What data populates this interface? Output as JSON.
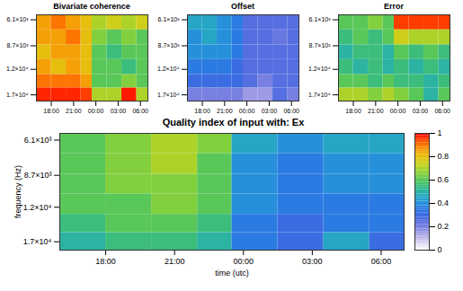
{
  "chart_data": [
    {
      "type": "heatmap",
      "title": "Bivariate coherence",
      "log": "y",
      "x_edges": [
        16,
        18,
        20,
        22,
        23.5,
        25.5,
        27.5,
        29.5,
        31
      ],
      "y_edges": [
        5700,
        7000,
        8600,
        10500,
        12900,
        15500,
        18500
      ],
      "cells": [
        [
          0.85,
          0.9,
          0.85,
          0.8,
          0.7,
          0.75,
          0.7,
          0.75
        ],
        [
          0.85,
          0.85,
          0.9,
          0.8,
          0.65,
          0.6,
          0.65,
          0.6
        ],
        [
          0.8,
          0.85,
          0.85,
          0.8,
          0.6,
          0.55,
          0.6,
          0.6
        ],
        [
          0.85,
          0.8,
          0.85,
          0.8,
          0.6,
          0.6,
          0.55,
          0.6
        ],
        [
          0.9,
          0.9,
          0.9,
          0.85,
          0.6,
          0.6,
          0.65,
          0.6
        ],
        [
          0.97,
          0.97,
          0.97,
          0.95,
          0.7,
          0.7,
          0.98,
          0.7
        ]
      ],
      "xlim": [
        16,
        31
      ],
      "ylim": [
        18500,
        5700
      ],
      "xticks": [
        {
          "value": 18,
          "label": "18:00"
        },
        {
          "value": 21,
          "label": "21:00"
        },
        {
          "value": 24,
          "label": "00:00"
        },
        {
          "value": 27,
          "label": "03:00"
        },
        {
          "value": 30,
          "label": "06:00"
        }
      ],
      "yticks": [
        {
          "value": 6100,
          "label": "6.1×10³"
        },
        {
          "value": 8700,
          "label": "8.7×10³"
        },
        {
          "value": 12000,
          "label": "1.2×10⁴"
        },
        {
          "value": 17000,
          "label": "1.7×10⁴"
        }
      ]
    },
    {
      "type": "heatmap",
      "title": "Offset",
      "log": "y",
      "x_edges": [
        16,
        18,
        20,
        22,
        23.5,
        25.5,
        27.5,
        29.5,
        31
      ],
      "y_edges": [
        5700,
        7000,
        8600,
        10500,
        12900,
        15500,
        18500
      ],
      "cells": [
        [
          0.45,
          0.45,
          0.4,
          0.35,
          0.25,
          0.25,
          0.25,
          0.25
        ],
        [
          0.4,
          0.45,
          0.4,
          0.35,
          0.25,
          0.25,
          0.22,
          0.25
        ],
        [
          0.4,
          0.4,
          0.4,
          0.35,
          0.25,
          0.25,
          0.25,
          0.25
        ],
        [
          0.35,
          0.35,
          0.35,
          0.3,
          0.25,
          0.25,
          0.25,
          0.25
        ],
        [
          0.3,
          0.3,
          0.3,
          0.3,
          0.25,
          0.2,
          0.25,
          0.25
        ],
        [
          0.2,
          0.2,
          0.2,
          0.2,
          0.15,
          0.15,
          0.25,
          0.2
        ]
      ],
      "xlim": [
        16,
        31
      ],
      "ylim": [
        18500,
        5700
      ],
      "xticks": [
        {
          "value": 18,
          "label": "18:00"
        },
        {
          "value": 21,
          "label": "21:00"
        },
        {
          "value": 24,
          "label": "00:00"
        },
        {
          "value": 27,
          "label": "03:00"
        },
        {
          "value": 30,
          "label": "06:00"
        }
      ],
      "yticks": [
        {
          "value": 6100,
          "label": "6.1×10³"
        },
        {
          "value": 8700,
          "label": "8.7×10³"
        },
        {
          "value": 12000,
          "label": "1.2×10⁴"
        },
        {
          "value": 17000,
          "label": "1.7×10⁴"
        }
      ]
    },
    {
      "type": "heatmap",
      "title": "Error",
      "log": "y",
      "x_edges": [
        16,
        18,
        20,
        22,
        23.5,
        25.5,
        27.5,
        29.5,
        31
      ],
      "y_edges": [
        5700,
        7000,
        8600,
        10500,
        12900,
        15500,
        18500
      ],
      "cells": [
        [
          0.6,
          0.6,
          0.65,
          0.6,
          0.95,
          0.95,
          0.95,
          0.95
        ],
        [
          0.55,
          0.6,
          0.55,
          0.6,
          0.75,
          0.7,
          0.7,
          0.7
        ],
        [
          0.5,
          0.55,
          0.55,
          0.5,
          0.6,
          0.55,
          0.6,
          0.55
        ],
        [
          0.55,
          0.5,
          0.55,
          0.5,
          0.55,
          0.5,
          0.55,
          0.5
        ],
        [
          0.6,
          0.6,
          0.55,
          0.6,
          0.55,
          0.55,
          0.5,
          0.55
        ],
        [
          0.7,
          0.7,
          0.65,
          0.7,
          0.65,
          0.6,
          0.5,
          0.6
        ]
      ],
      "xlim": [
        16,
        31
      ],
      "ylim": [
        18500,
        5700
      ],
      "xticks": [
        {
          "value": 18,
          "label": "18:00"
        },
        {
          "value": 21,
          "label": "21:00"
        },
        {
          "value": 24,
          "label": "00:00"
        },
        {
          "value": 27,
          "label": "03:00"
        },
        {
          "value": 30,
          "label": "06:00"
        }
      ],
      "yticks": [
        {
          "value": 6100,
          "label": "6.1×10³"
        },
        {
          "value": 8700,
          "label": "8.7×10³"
        },
        {
          "value": 12000,
          "label": "1.2×10⁴"
        },
        {
          "value": 17000,
          "label": "1.7×10⁴"
        }
      ]
    },
    {
      "type": "heatmap",
      "title": "Quality index of input with: Ex",
      "log": "y",
      "x_label": "time (utc)",
      "y_label": "frequency (Hz)",
      "x_edges": [
        16,
        18,
        20,
        22,
        23.5,
        25.5,
        27.5,
        29.5,
        31
      ],
      "y_edges": [
        5700,
        7000,
        8600,
        10500,
        12900,
        15500,
        18500
      ],
      "cells": [
        [
          0.6,
          0.65,
          0.7,
          0.65,
          0.45,
          0.4,
          0.45,
          0.45
        ],
        [
          0.6,
          0.65,
          0.7,
          0.6,
          0.4,
          0.35,
          0.4,
          0.4
        ],
        [
          0.6,
          0.65,
          0.65,
          0.6,
          0.4,
          0.35,
          0.4,
          0.4
        ],
        [
          0.6,
          0.6,
          0.65,
          0.6,
          0.4,
          0.35,
          0.35,
          0.35
        ],
        [
          0.55,
          0.6,
          0.6,
          0.55,
          0.35,
          0.3,
          0.35,
          0.35
        ],
        [
          0.5,
          0.55,
          0.55,
          0.5,
          0.35,
          0.3,
          0.45,
          0.3
        ]
      ],
      "xlim": [
        16,
        31
      ],
      "ylim": [
        18500,
        5700
      ],
      "xticks": [
        {
          "value": 18,
          "label": "18:00"
        },
        {
          "value": 21,
          "label": "21:00"
        },
        {
          "value": 24,
          "label": "00:00"
        },
        {
          "value": 27,
          "label": "03:00"
        },
        {
          "value": 30,
          "label": "06:00"
        }
      ],
      "yticks": [
        {
          "value": 6100,
          "label": "6.1×10³"
        },
        {
          "value": 8700,
          "label": "8.7×10³"
        },
        {
          "value": 12000,
          "label": "1.2×10⁴"
        },
        {
          "value": 17000,
          "label": "1.7×10⁴"
        }
      ],
      "colorbar": {
        "range": [
          0,
          1
        ],
        "ticks": [
          0,
          0.2,
          0.4,
          0.6,
          0.8,
          1
        ],
        "colormap": [
          "#ffffff",
          "#a89ce0",
          "#3050e0",
          "#20a8e8",
          "#30c060",
          "#c8e020",
          "#ffb000",
          "#ff0000"
        ]
      }
    }
  ]
}
